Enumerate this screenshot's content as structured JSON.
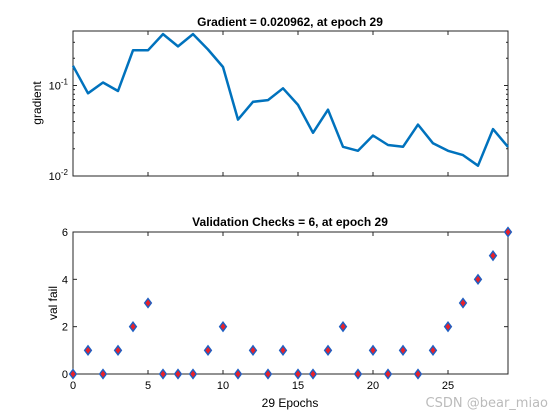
{
  "chart_data": [
    {
      "type": "line",
      "title": "Gradient = 0.020962, at epoch 29",
      "xlabel": "",
      "ylabel": "gradient",
      "yscale": "log",
      "xlim": [
        0,
        29
      ],
      "ylim": [
        0.01,
        0.4
      ],
      "yticks": [
        {
          "base": "10",
          "exp": "-2",
          "value": 0.01
        },
        {
          "base": "10",
          "exp": "-1",
          "value": 0.1
        }
      ],
      "grid": false,
      "line_color": "#0072BD",
      "x": [
        0,
        1,
        2,
        3,
        4,
        5,
        6,
        7,
        8,
        9,
        10,
        11,
        12,
        13,
        14,
        15,
        16,
        17,
        18,
        19,
        20,
        21,
        22,
        23,
        24,
        25,
        26,
        27,
        28,
        29
      ],
      "y": [
        0.165,
        0.082,
        0.108,
        0.087,
        0.245,
        0.245,
        0.37,
        0.27,
        0.37,
        0.25,
        0.16,
        0.042,
        0.066,
        0.069,
        0.093,
        0.061,
        0.03,
        0.054,
        0.021,
        0.019,
        0.028,
        0.022,
        0.021,
        0.037,
        0.023,
        0.019,
        0.017,
        0.013,
        0.033,
        0.020962
      ]
    },
    {
      "type": "scatter",
      "title": "Validation Checks = 6, at epoch 29",
      "xlabel": "29 Epochs",
      "ylabel": "val fail",
      "xlim": [
        0,
        29
      ],
      "ylim": [
        0,
        6
      ],
      "xticks": [
        0,
        5,
        10,
        15,
        20,
        25
      ],
      "yticks": [
        0,
        2,
        4,
        6
      ],
      "grid": false,
      "marker": "diamond",
      "marker_fill": "#e8202a",
      "marker_edge": "#1f5fc2",
      "x": [
        0,
        1,
        2,
        3,
        4,
        5,
        6,
        7,
        8,
        9,
        10,
        11,
        12,
        13,
        14,
        15,
        16,
        17,
        18,
        19,
        20,
        21,
        22,
        23,
        24,
        25,
        26,
        27,
        28,
        29
      ],
      "y": [
        0,
        1,
        0,
        1,
        2,
        3,
        0,
        0,
        0,
        1,
        2,
        0,
        1,
        0,
        1,
        0,
        0,
        1,
        2,
        0,
        1,
        0,
        1,
        0,
        1,
        2,
        3,
        4,
        5,
        6
      ]
    }
  ],
  "watermark": "CSDN @bear_miao"
}
